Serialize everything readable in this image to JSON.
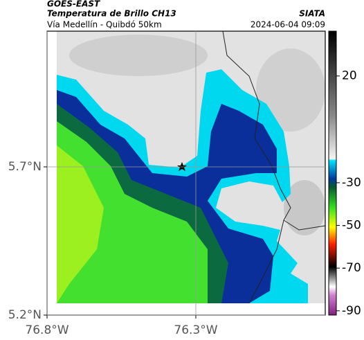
{
  "header": {
    "satellite": "GOES-EAST",
    "product": "Temperatura de Brillo CH13",
    "route": "Vía Medellín - Quibdó 50km",
    "source": "SIATA",
    "timestamp": "2024-06-04 09:09"
  },
  "map": {
    "xlim": [
      -76.8,
      -75.865
    ],
    "ylim": [
      5.2,
      6.158
    ],
    "xticks": [
      {
        "value": -76.8,
        "label": "76.8°W"
      },
      {
        "value": -76.3,
        "label": "76.3°W"
      }
    ],
    "yticks": [
      {
        "value": 5.2,
        "label": "5.2°N"
      },
      {
        "value": 5.7,
        "label": "5.7°N"
      }
    ],
    "grid": true
  },
  "colorbar": {
    "lim": [
      -92,
      41
    ],
    "ticks": [
      20,
      -30,
      -50,
      -70,
      -90
    ]
  }
}
